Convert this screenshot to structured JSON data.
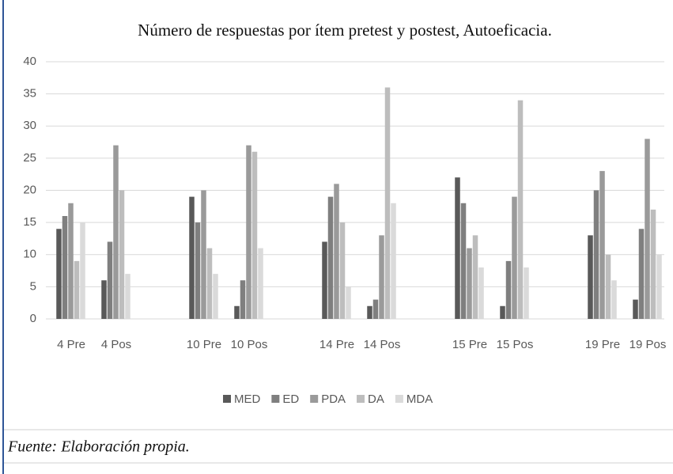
{
  "chart_data": {
    "type": "bar",
    "title": "Número de respuestas por ítem pretest y postest, Autoeficacia.",
    "categories": [
      "4 Pre",
      "4 Pos",
      "10 Pre",
      "10 Pos",
      "14 Pre",
      "14 Pos",
      "15 Pre",
      "15 Pos",
      "19 Pre",
      "19 Pos"
    ],
    "series": [
      {
        "name": "MED",
        "color": "#595959",
        "values": [
          14,
          6,
          19,
          2,
          12,
          2,
          22,
          2,
          13,
          3
        ]
      },
      {
        "name": "ED",
        "color": "#7f7f7f",
        "values": [
          16,
          12,
          15,
          6,
          19,
          3,
          18,
          9,
          20,
          14
        ]
      },
      {
        "name": "PDA",
        "color": "#9a9a9a",
        "values": [
          18,
          27,
          20,
          27,
          21,
          13,
          11,
          19,
          23,
          28
        ]
      },
      {
        "name": "DA",
        "color": "#bdbdbd",
        "values": [
          9,
          20,
          11,
          26,
          15,
          36,
          13,
          34,
          10,
          17
        ]
      },
      {
        "name": "MDA",
        "color": "#dadada",
        "values": [
          15,
          7,
          7,
          11,
          5,
          18,
          8,
          8,
          6,
          10
        ]
      }
    ],
    "ylim": [
      0,
      40
    ],
    "yticks": [
      0,
      5,
      10,
      15,
      20,
      25,
      30,
      35,
      40
    ],
    "grid": true,
    "legend": "bottom"
  },
  "source": "Fuente: Elaboración propia."
}
